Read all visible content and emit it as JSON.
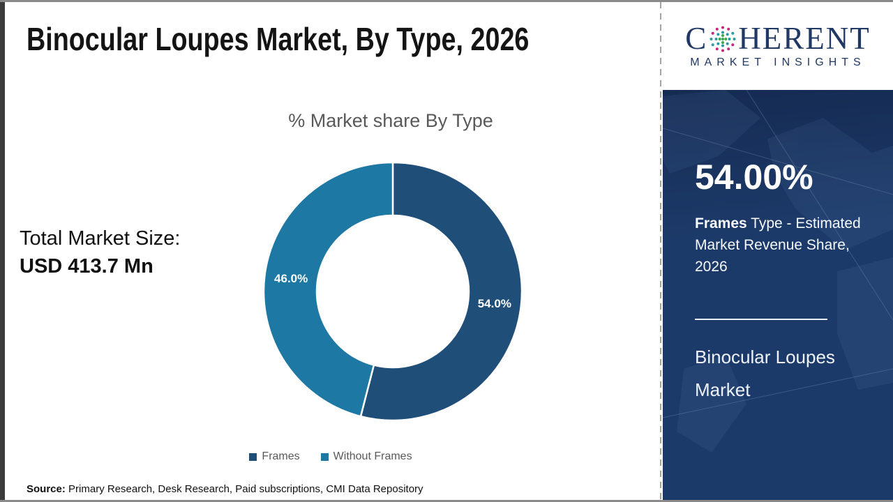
{
  "page": {
    "title": "Binocular Loupes Market, By Type, 2026",
    "total_market_label": "Total Market Size:",
    "total_market_value": "USD 413.7 Mn",
    "source_label": "Source:",
    "source_text": " Primary Research, Desk Research, Paid subscriptions, CMI Data Repository"
  },
  "chart_data": {
    "type": "pie",
    "subtype": "donut",
    "title": "% Market share By Type",
    "categories": [
      "Frames",
      "Without Frames"
    ],
    "values": [
      54.0,
      46.0
    ],
    "data_labels": [
      "54.0%",
      "46.0%"
    ],
    "colors": [
      "#1F4E79",
      "#1E78A4"
    ],
    "start_angle_deg": 0,
    "direction": "clockwise",
    "hole_ratio": 0.59,
    "legend_position": "bottom"
  },
  "sidebar": {
    "logo": {
      "brand_c": "C",
      "brand_rest": "HERENT",
      "subtitle": "MARKET INSIGHTS",
      "navy": "#1F3864",
      "globe_dot_colors": [
        "#3DA84A",
        "#2C9AA0",
        "#C2267E"
      ]
    },
    "stat_value": "54.00%",
    "stat_desc_bold": "Frames",
    "stat_desc_rest": " Type - Estimated Market Revenue Share, 2026",
    "market_name": "Binocular Loupes Market",
    "panel_color": "#1C3A69"
  }
}
